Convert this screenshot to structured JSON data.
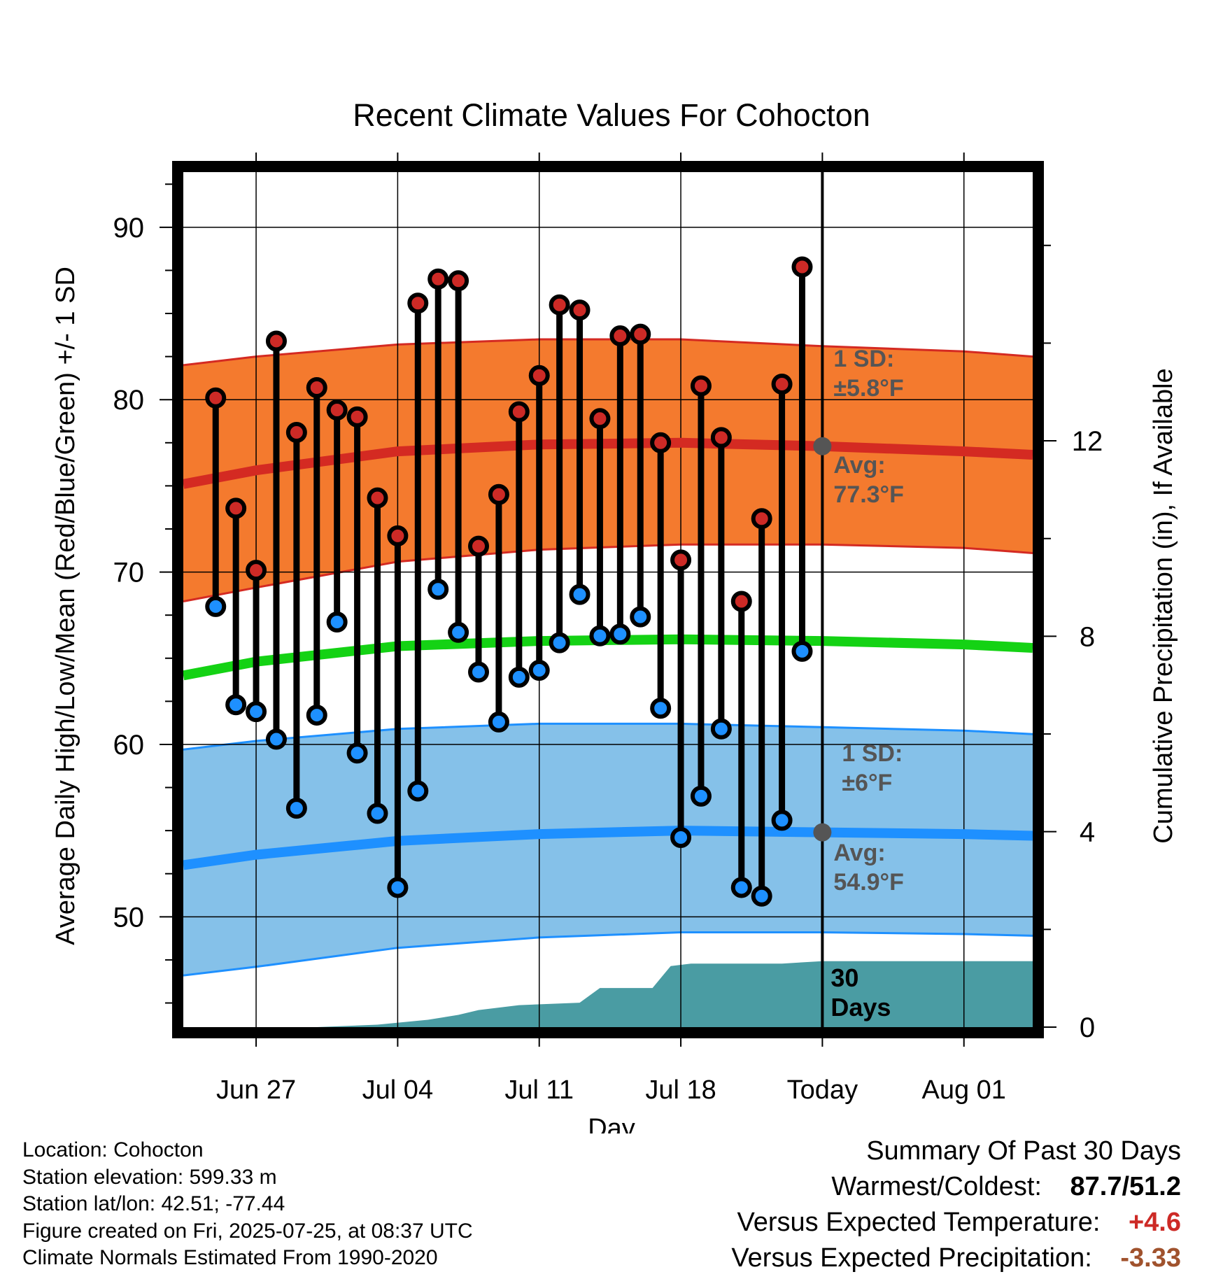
{
  "chart_data": {
    "type": "line",
    "title": "Recent Climate Values For Cohocton",
    "xlabel": "Day",
    "ylabel": "Average Daily High/Low/Mean (Red/Blue/Green) +/- 1 SD",
    "y2label": "Cumulative Precipitation (in), If Available",
    "ylim": [
      43.6,
      93.2
    ],
    "y2lim": [
      0,
      17.5
    ],
    "xlim": [
      -3.6,
      38.4
    ],
    "x_ticks": [
      {
        "day": 0,
        "label": "Jun 27"
      },
      {
        "day": 7,
        "label": "Jul 04"
      },
      {
        "day": 14,
        "label": "Jul 11"
      },
      {
        "day": 21,
        "label": "Jul 18"
      },
      {
        "day": 28,
        "label": "Today"
      },
      {
        "day": 35,
        "label": "Aug 01"
      }
    ],
    "y_ticks": [
      50,
      60,
      70,
      80,
      90
    ],
    "y2_ticks": [
      0,
      4,
      8,
      12
    ],
    "grid": true,
    "today_day": 28,
    "window_label": "30\nDays",
    "daily": {
      "day_offset": [
        -2,
        -1,
        0,
        1,
        2,
        3,
        4,
        5,
        6,
        7,
        8,
        9,
        10,
        11,
        12,
        13,
        14,
        15,
        16,
        17,
        18,
        19,
        20,
        21,
        22,
        23,
        24,
        25,
        26,
        27
      ],
      "high": [
        80.1,
        73.7,
        70.1,
        83.4,
        78.1,
        80.7,
        79.4,
        79.0,
        74.3,
        72.1,
        85.6,
        87.0,
        86.9,
        71.5,
        74.5,
        79.3,
        81.4,
        85.5,
        85.2,
        78.9,
        83.7,
        83.8,
        77.5,
        70.7,
        80.8,
        77.8,
        68.3,
        73.1,
        80.9,
        87.7
      ],
      "low": [
        68.0,
        62.3,
        61.9,
        60.3,
        56.3,
        61.7,
        67.1,
        59.5,
        56.0,
        51.7,
        57.3,
        69.0,
        66.5,
        64.2,
        61.3,
        63.9,
        64.3,
        65.9,
        68.7,
        66.3,
        66.4,
        67.4,
        62.1,
        54.6,
        57.0,
        60.9,
        51.7,
        51.2,
        55.6,
        65.4
      ]
    },
    "normals": {
      "day_offset": [
        -3.6,
        0,
        7,
        14,
        21,
        28,
        35,
        38.4
      ],
      "high_mean": [
        75.1,
        75.9,
        77.0,
        77.4,
        77.5,
        77.3,
        77.0,
        76.8
      ],
      "high_upper": [
        82.0,
        82.5,
        83.2,
        83.5,
        83.5,
        83.1,
        82.8,
        82.5
      ],
      "high_lower": [
        68.3,
        69.1,
        70.6,
        71.3,
        71.6,
        71.6,
        71.4,
        71.1
      ],
      "mean": [
        64.0,
        64.8,
        65.7,
        66.0,
        66.1,
        66.0,
        65.8,
        65.6
      ],
      "low_mean": [
        53.0,
        53.6,
        54.4,
        54.8,
        55.0,
        54.9,
        54.8,
        54.7
      ],
      "low_upper": [
        59.7,
        60.2,
        60.9,
        61.2,
        61.2,
        61.0,
        60.8,
        60.6
      ],
      "low_lower": [
        46.6,
        47.1,
        48.2,
        48.8,
        49.1,
        49.1,
        49.0,
        48.9
      ]
    },
    "cum_precip": {
      "day_offset": [
        -3.6,
        3,
        6,
        8.5,
        10,
        11,
        13,
        16,
        17,
        18.5,
        19.6,
        20.5,
        21.5,
        23,
        26,
        28,
        38.4
      ],
      "inches": [
        0,
        0,
        0.05,
        0.15,
        0.25,
        0.35,
        0.45,
        0.5,
        0.8,
        0.8,
        0.8,
        1.25,
        1.3,
        1.3,
        1.3,
        1.35,
        1.35
      ]
    },
    "annotations": {
      "high_sd_label": "1 SD:",
      "high_sd_value": "±5.8°F",
      "high_avg_label": "Avg:",
      "high_avg_value": "77.3°F",
      "low_sd_label": "1 SD:",
      "low_sd_value": "±6°F",
      "low_avg_label": "Avg:",
      "low_avg_value": "54.9°F",
      "high_avg_number": 77.3,
      "low_avg_number": 54.9
    },
    "colors": {
      "high_band": "#f47a2e",
      "high_line": "#d42a22",
      "low_band": "#85c1e9",
      "low_line": "#1e90ff",
      "mean_line": "#14d214",
      "precip": "#4a9ca3",
      "high_dot": "#cd2a26",
      "low_dot": "#1e90ff",
      "annotation": "#555555"
    }
  },
  "footer": {
    "location": "Location: Cohocton",
    "elevation": "Station elevation: 599.33 m",
    "latlon": "Station lat/lon: 42.51; -77.44",
    "created": "Figure created on Fri, 2025-07-25, at 08:37 UTC",
    "normals": "Climate Normals Estimated From 1990-2020"
  },
  "summary": {
    "title": "Summary Of Past 30 Days",
    "warm_cold_label": "Warmest/Coldest:",
    "warm_cold_value": "87.7/51.2",
    "temp_label": "Versus Expected Temperature:",
    "temp_value": "+4.6",
    "temp_color": "#cd2a26",
    "precip_label": "Versus Expected Precipitation:",
    "precip_value": "-3.33",
    "precip_color": "#a0522d"
  }
}
